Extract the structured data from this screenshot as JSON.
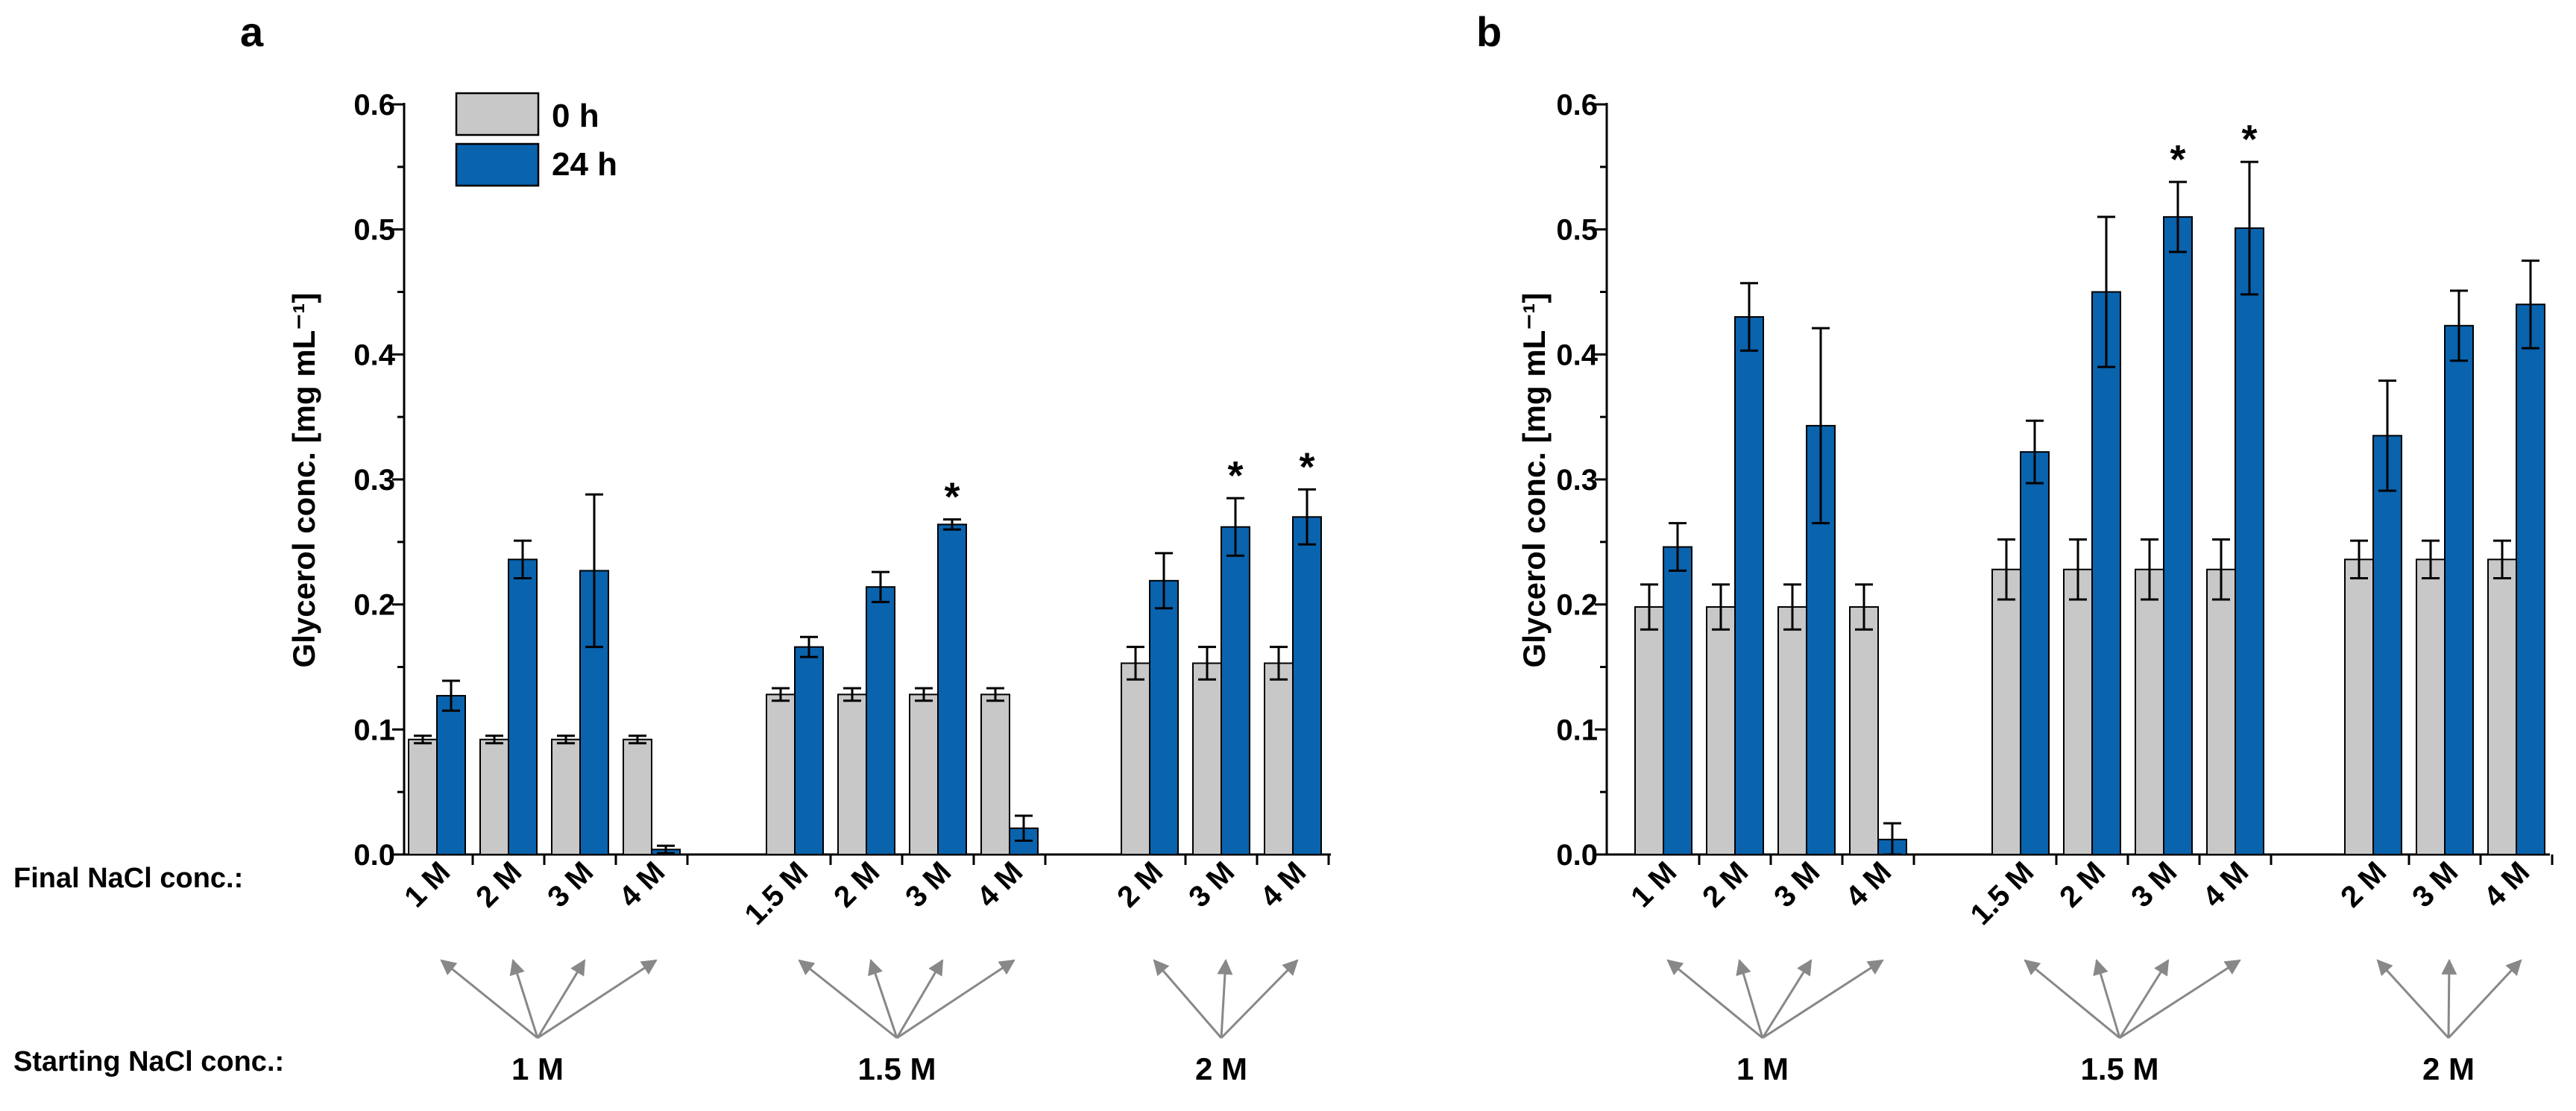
{
  "row_labels": {
    "final": "Final NaCl conc.:",
    "starting": "Starting NaCl conc.:"
  },
  "colors": {
    "h0": "#c8c8c8",
    "h24": "#0a63ad",
    "arrow": "#888888"
  },
  "chart_data": [
    {
      "panel": "a",
      "type": "bar",
      "ylabel": "Glycerol conc. [mg mL⁻¹]",
      "ylim": [
        0,
        0.6
      ],
      "yticks": [
        "0.0",
        "0.1",
        "0.2",
        "0.3",
        "0.4",
        "0.5",
        "0.6"
      ],
      "legend": [
        "0 h",
        "24 h"
      ],
      "legend_position": "top-left",
      "groups": [
        {
          "start": "1 M",
          "finals": [
            "1 M",
            "2 M",
            "3 M",
            "4 M"
          ],
          "h0": [
            0.092,
            0.092,
            0.092,
            0.092
          ],
          "h0_err": [
            0.003,
            0.003,
            0.003,
            0.003
          ],
          "h24": [
            0.127,
            0.236,
            0.227,
            0.004
          ],
          "h24_err": [
            0.012,
            0.015,
            0.061,
            0.003
          ],
          "sig": [
            false,
            false,
            false,
            false
          ]
        },
        {
          "start": "1.5 M",
          "finals": [
            "1.5 M",
            "2 M",
            "3 M",
            "4 M"
          ],
          "h0": [
            0.128,
            0.128,
            0.128,
            0.128
          ],
          "h0_err": [
            0.005,
            0.005,
            0.005,
            0.005
          ],
          "h24": [
            0.166,
            0.214,
            0.264,
            0.021
          ],
          "h24_err": [
            0.008,
            0.012,
            0.004,
            0.01
          ],
          "sig": [
            false,
            false,
            true,
            false
          ]
        },
        {
          "start": "2 M",
          "finals": [
            "2 M",
            "3 M",
            "4 M"
          ],
          "h0": [
            0.153,
            0.153,
            0.153
          ],
          "h0_err": [
            0.013,
            0.013,
            0.013
          ],
          "h24": [
            0.219,
            0.262,
            0.27
          ],
          "h24_err": [
            0.022,
            0.023,
            0.022
          ],
          "sig": [
            false,
            true,
            true
          ]
        }
      ]
    },
    {
      "panel": "b",
      "type": "bar",
      "ylabel": "Glycerol conc. [mg mL⁻¹]",
      "ylim": [
        0,
        0.6
      ],
      "yticks": [
        "0.0",
        "0.1",
        "0.2",
        "0.3",
        "0.4",
        "0.5",
        "0.6"
      ],
      "groups": [
        {
          "start": "1 M",
          "finals": [
            "1 M",
            "2 M",
            "3 M",
            "4 M"
          ],
          "h0": [
            0.198,
            0.198,
            0.198,
            0.198
          ],
          "h0_err": [
            0.018,
            0.018,
            0.018,
            0.018
          ],
          "h24": [
            0.246,
            0.43,
            0.343,
            0.012
          ],
          "h24_err": [
            0.019,
            0.027,
            0.078,
            0.013
          ],
          "sig": [
            false,
            false,
            false,
            false
          ]
        },
        {
          "start": "1.5 M",
          "finals": [
            "1.5 M",
            "2 M",
            "3 M",
            "4 M"
          ],
          "h0": [
            0.228,
            0.228,
            0.228,
            0.228
          ],
          "h0_err": [
            0.024,
            0.024,
            0.024,
            0.024
          ],
          "h24": [
            0.322,
            0.45,
            0.51,
            0.501
          ],
          "h24_err": [
            0.025,
            0.06,
            0.028,
            0.053
          ],
          "sig": [
            false,
            false,
            true,
            true
          ]
        },
        {
          "start": "2 M",
          "finals": [
            "2 M",
            "3 M",
            "4 M"
          ],
          "h0": [
            0.236,
            0.236,
            0.236
          ],
          "h0_err": [
            0.015,
            0.015,
            0.015
          ],
          "h24": [
            0.335,
            0.423,
            0.44
          ],
          "h24_err": [
            0.044,
            0.028,
            0.035
          ],
          "sig": [
            false,
            false,
            false
          ]
        }
      ]
    }
  ]
}
